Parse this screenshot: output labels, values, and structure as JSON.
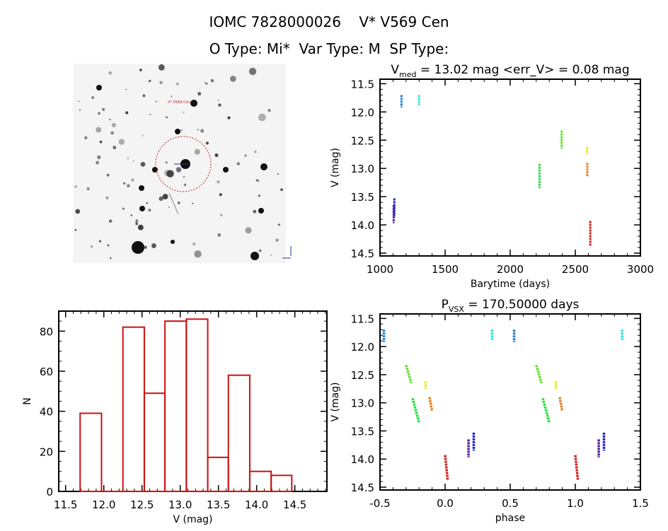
{
  "header": {
    "title": "IOMC 7828000026    V* V569 Cen",
    "subtitle": "O Type: Mi*  Var Type: M  SP Type:"
  },
  "thumbnail": {
    "target_label": "V* V569 Cen"
  },
  "colors": {
    "histogram": "#cc1111",
    "axis": "#000000"
  },
  "chart_data": [
    {
      "type": "bar",
      "name": "histogram",
      "title": "",
      "xlabel": "V (mag)",
      "ylabel": "N",
      "xlim": [
        11.41,
        14.92
      ],
      "ylim": [
        0,
        90
      ],
      "xticks": [
        "11.5",
        "12.0",
        "12.5",
        "13.0",
        "13.5",
        "14.0",
        "14.5"
      ],
      "yticks": [
        "0",
        "20",
        "40",
        "60",
        "80"
      ],
      "bin_edges": [
        11.69,
        11.97,
        12.25,
        12.53,
        12.8,
        13.08,
        13.36,
        13.63,
        13.91,
        14.19,
        14.46
      ],
      "values": [
        39,
        0,
        82,
        49,
        85,
        86,
        17,
        58,
        10,
        8
      ]
    },
    {
      "type": "scatter",
      "name": "light-curve",
      "title_main": "V",
      "title_sub": "med",
      "title_rest": " = 13.02 mag <err_V> = 0.08 mag",
      "xlabel": "Barytime (days)",
      "ylabel": "V (mag)",
      "xlim": [
        1000,
        3000
      ],
      "ylim": [
        14.55,
        11.42
      ],
      "xticks": [
        "1000",
        "1500",
        "2000",
        "2500",
        "3000"
      ],
      "yticks": [
        "11.5",
        "12.0",
        "12.5",
        "13.0",
        "13.5",
        "14.0",
        "14.5"
      ],
      "groups": [
        {
          "color": "#5a1a9a",
          "t": 1105,
          "mag": [
            13.65,
            13.97
          ]
        },
        {
          "color": "#2020d0",
          "t": 1110,
          "mag": [
            13.53,
            13.85
          ]
        },
        {
          "color": "#2080d0",
          "t": 1165,
          "mag": [
            11.7,
            11.92
          ]
        },
        {
          "color": "#30e0e0",
          "t": 1300,
          "mag": [
            11.7,
            11.88
          ]
        },
        {
          "color": "#20e040",
          "t": 2225,
          "mag": [
            12.92,
            13.35
          ]
        },
        {
          "color": "#60e020",
          "t": 2395,
          "mag": [
            12.33,
            12.65
          ]
        },
        {
          "color": "#e8e820",
          "t": 2590,
          "mag": [
            12.62,
            12.75
          ]
        },
        {
          "color": "#e08020",
          "t": 2592,
          "mag": [
            12.9,
            13.15
          ]
        },
        {
          "color": "#d02020",
          "t": 2615,
          "mag": [
            13.93,
            14.38
          ]
        }
      ]
    },
    {
      "type": "scatter",
      "name": "phase-plot",
      "title_main": "P",
      "title_sub": "VSX",
      "title_rest": " = 170.50000 days",
      "xlabel": "phase",
      "ylabel": "V (mag)",
      "xlim": [
        -0.5,
        1.5
      ],
      "ylim": [
        14.55,
        11.42
      ],
      "xticks": [
        "-0.5",
        "0.0",
        "0.5",
        "1.0",
        "1.5"
      ],
      "yticks": [
        "11.5",
        "12.0",
        "12.5",
        "13.0",
        "13.5",
        "14.0",
        "14.5"
      ],
      "groups": [
        {
          "color": "#5a1a9a",
          "phase": [
            0.18,
            0.18
          ],
          "mag": [
            13.65,
            13.97
          ]
        },
        {
          "color": "#2020d0",
          "phase": [
            0.22,
            0.22
          ],
          "mag": [
            13.53,
            13.85
          ]
        },
        {
          "color": "#2080d0",
          "phase": [
            -0.47,
            -0.47
          ],
          "mag": [
            11.7,
            11.92
          ]
        },
        {
          "color": "#30e0e0",
          "phase": [
            0.36,
            0.36
          ],
          "mag": [
            11.7,
            11.88
          ]
        },
        {
          "color": "#20e040",
          "phase": [
            -0.25,
            -0.2
          ],
          "mag": [
            12.92,
            13.35
          ]
        },
        {
          "color": "#60e020",
          "phase": [
            -0.3,
            -0.26
          ],
          "mag": [
            12.33,
            12.65
          ]
        },
        {
          "color": "#e8e820",
          "phase": [
            -0.15,
            -0.15
          ],
          "mag": [
            12.62,
            12.75
          ]
        },
        {
          "color": "#e08020",
          "phase": [
            -0.12,
            -0.1
          ],
          "mag": [
            12.9,
            13.15
          ]
        },
        {
          "color": "#d02020",
          "phase": [
            0.0,
            0.02
          ],
          "mag": [
            13.93,
            14.38
          ]
        }
      ]
    }
  ]
}
